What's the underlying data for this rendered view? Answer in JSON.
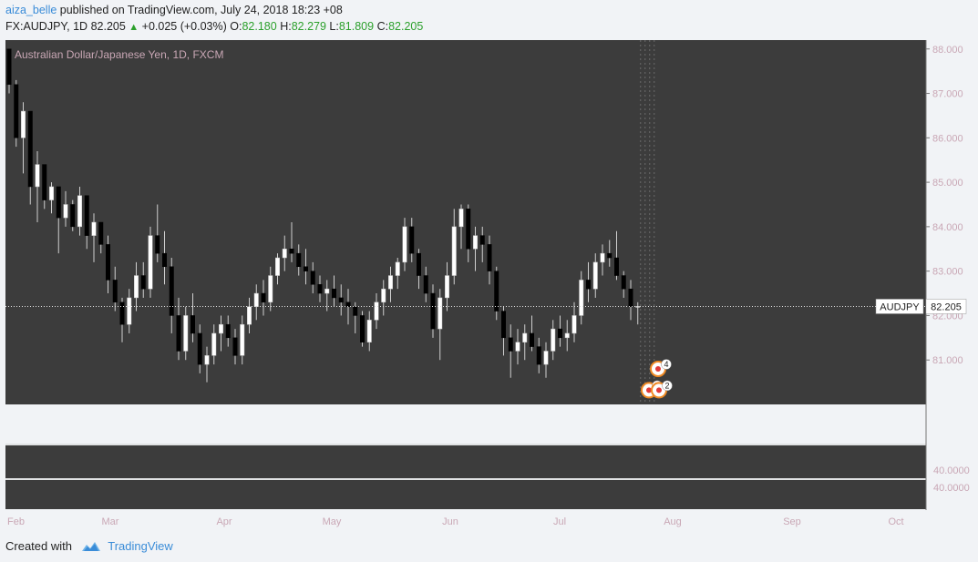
{
  "header": {
    "author": "aiza_belle",
    "published_text": "published on TradingView.com, July 24, 2018 18:23 +08",
    "symbol": "FX:AUDJPY, 1D",
    "last": "82.205",
    "change": "+0.025 (+0.03%)",
    "o_label": "O:",
    "o_val": "82.180",
    "h_label": "H:",
    "h_val": "82.279",
    "l_label": "L:",
    "l_val": "81.809",
    "c_label": "C:",
    "c_val": "82.205"
  },
  "footer": {
    "created_with": "Created with",
    "brand": "TradingView"
  },
  "colors": {
    "background": "#3c3c3c",
    "up_body": "#ffffff",
    "down_body": "#000000",
    "wick": "#cfcfcf",
    "axis_text": "#c9a7b5",
    "marker_ring": "#f08a24"
  },
  "chart_data": {
    "type": "candlestick",
    "title": "Australian Dollar/Japanese Yen, 1D, FXCM",
    "x_labels": [
      "Feb",
      "Mar",
      "Apr",
      "May",
      "Jun",
      "Jul",
      "Aug",
      "Sep",
      "Oct"
    ],
    "y_ticks": [
      "88.000",
      "87.000",
      "86.000",
      "85.000",
      "84.000",
      "83.000",
      "82.000",
      "81.000"
    ],
    "ylim": [
      80.0,
      88.2
    ],
    "last_price_label": {
      "symbol": "AUDJPY",
      "price": "82.205",
      "value": 82.205
    },
    "lower_pane_labels": [
      "40.0000",
      "40.0000"
    ],
    "event_markers": [
      {
        "label": "4",
        "value": 80.8
      },
      {
        "label": "7",
        "value": 80.32
      },
      {
        "label": "2",
        "value": 80.32
      }
    ],
    "ohlc": [
      [
        88.0,
        88.0,
        87.0,
        87.2
      ],
      [
        87.2,
        87.3,
        85.8,
        86.0
      ],
      [
        86.0,
        86.8,
        85.2,
        86.6
      ],
      [
        86.6,
        86.6,
        84.5,
        84.9
      ],
      [
        84.9,
        85.7,
        84.1,
        85.4
      ],
      [
        85.4,
        85.4,
        84.4,
        84.6
      ],
      [
        84.6,
        85.0,
        84.3,
        84.9
      ],
      [
        84.9,
        84.9,
        83.4,
        84.2
      ],
      [
        84.2,
        84.8,
        84.0,
        84.5
      ],
      [
        84.5,
        84.6,
        83.9,
        84.0
      ],
      [
        84.0,
        84.9,
        83.8,
        84.7
      ],
      [
        84.7,
        84.7,
        83.5,
        83.8
      ],
      [
        83.8,
        84.3,
        83.2,
        84.1
      ],
      [
        84.1,
        84.1,
        83.4,
        83.6
      ],
      [
        83.6,
        83.8,
        82.5,
        82.8
      ],
      [
        82.8,
        83.1,
        82.1,
        82.3
      ],
      [
        82.3,
        82.4,
        81.4,
        81.8
      ],
      [
        81.8,
        82.6,
        81.6,
        82.4
      ],
      [
        82.4,
        83.2,
        82.1,
        82.9
      ],
      [
        82.9,
        83.2,
        82.4,
        82.6
      ],
      [
        82.6,
        84.0,
        82.4,
        83.8
      ],
      [
        83.8,
        84.5,
        83.2,
        83.4
      ],
      [
        83.4,
        83.9,
        82.7,
        83.1
      ],
      [
        83.1,
        83.3,
        81.6,
        82.0
      ],
      [
        82.0,
        82.4,
        81.0,
        81.2
      ],
      [
        81.2,
        82.2,
        81.0,
        82.0
      ],
      [
        82.0,
        82.5,
        81.4,
        81.6
      ],
      [
        81.6,
        81.8,
        80.7,
        80.9
      ],
      [
        80.9,
        81.3,
        80.5,
        81.1
      ],
      [
        81.1,
        81.8,
        80.9,
        81.6
      ],
      [
        81.6,
        82.0,
        81.2,
        81.8
      ],
      [
        81.8,
        82.0,
        81.3,
        81.5
      ],
      [
        81.5,
        81.7,
        80.9,
        81.1
      ],
      [
        81.1,
        82.0,
        80.9,
        81.8
      ],
      [
        81.8,
        82.4,
        81.6,
        82.2
      ],
      [
        82.2,
        82.7,
        81.9,
        82.5
      ],
      [
        82.5,
        82.8,
        82.0,
        82.3
      ],
      [
        82.3,
        83.1,
        82.1,
        82.9
      ],
      [
        82.9,
        83.4,
        82.7,
        83.3
      ],
      [
        83.3,
        83.8,
        83.0,
        83.5
      ],
      [
        83.5,
        84.1,
        83.2,
        83.4
      ],
      [
        83.4,
        83.6,
        82.9,
        83.1
      ],
      [
        83.1,
        83.5,
        82.7,
        83.0
      ],
      [
        83.0,
        83.2,
        82.5,
        82.7
      ],
      [
        82.7,
        82.9,
        82.3,
        82.5
      ],
      [
        82.5,
        82.8,
        82.1,
        82.6
      ],
      [
        82.6,
        82.9,
        82.2,
        82.4
      ],
      [
        82.4,
        82.7,
        82.0,
        82.3
      ],
      [
        82.3,
        82.6,
        81.8,
        82.2
      ],
      [
        82.2,
        82.3,
        81.6,
        82.0
      ],
      [
        82.0,
        82.1,
        81.3,
        81.4
      ],
      [
        81.4,
        82.1,
        81.2,
        81.9
      ],
      [
        81.9,
        82.5,
        81.7,
        82.3
      ],
      [
        82.3,
        82.8,
        82.0,
        82.6
      ],
      [
        82.6,
        83.1,
        82.3,
        82.9
      ],
      [
        82.9,
        83.3,
        82.6,
        83.2
      ],
      [
        83.2,
        84.2,
        83.0,
        84.0
      ],
      [
        84.0,
        84.2,
        83.2,
        83.4
      ],
      [
        83.4,
        83.5,
        82.6,
        82.9
      ],
      [
        82.9,
        83.1,
        82.3,
        82.5
      ],
      [
        82.5,
        82.7,
        81.5,
        81.7
      ],
      [
        81.7,
        82.6,
        81.0,
        82.4
      ],
      [
        82.4,
        83.2,
        82.1,
        82.9
      ],
      [
        82.9,
        84.4,
        82.7,
        84.0
      ],
      [
        84.0,
        84.5,
        83.5,
        84.4
      ],
      [
        84.4,
        84.5,
        83.2,
        83.5
      ],
      [
        83.5,
        84.0,
        83.0,
        83.8
      ],
      [
        83.8,
        84.0,
        83.2,
        83.6
      ],
      [
        83.6,
        83.8,
        82.7,
        83.0
      ],
      [
        83.0,
        83.1,
        81.9,
        82.1
      ],
      [
        82.1,
        82.2,
        81.1,
        81.5
      ],
      [
        81.5,
        81.8,
        80.6,
        81.2
      ],
      [
        81.2,
        81.7,
        80.9,
        81.4
      ],
      [
        81.4,
        81.8,
        81.0,
        81.6
      ],
      [
        81.6,
        82.0,
        81.2,
        81.3
      ],
      [
        81.3,
        81.5,
        80.7,
        80.9
      ],
      [
        80.9,
        81.4,
        80.6,
        81.2
      ],
      [
        81.2,
        81.9,
        81.0,
        81.7
      ],
      [
        81.7,
        82.0,
        81.3,
        81.5
      ],
      [
        81.5,
        81.9,
        81.2,
        81.6
      ],
      [
        81.6,
        82.3,
        81.4,
        82.0
      ],
      [
        82.0,
        83.0,
        81.8,
        82.8
      ],
      [
        82.8,
        83.2,
        82.3,
        82.6
      ],
      [
        82.6,
        83.4,
        82.4,
        83.2
      ],
      [
        83.2,
        83.6,
        82.9,
        83.4
      ],
      [
        83.4,
        83.7,
        83.1,
        83.3
      ],
      [
        83.3,
        83.9,
        82.8,
        82.9
      ],
      [
        82.9,
        83.0,
        82.4,
        82.6
      ],
      [
        82.6,
        82.8,
        81.9,
        82.2
      ],
      [
        82.2,
        82.3,
        81.8,
        82.205
      ]
    ]
  }
}
